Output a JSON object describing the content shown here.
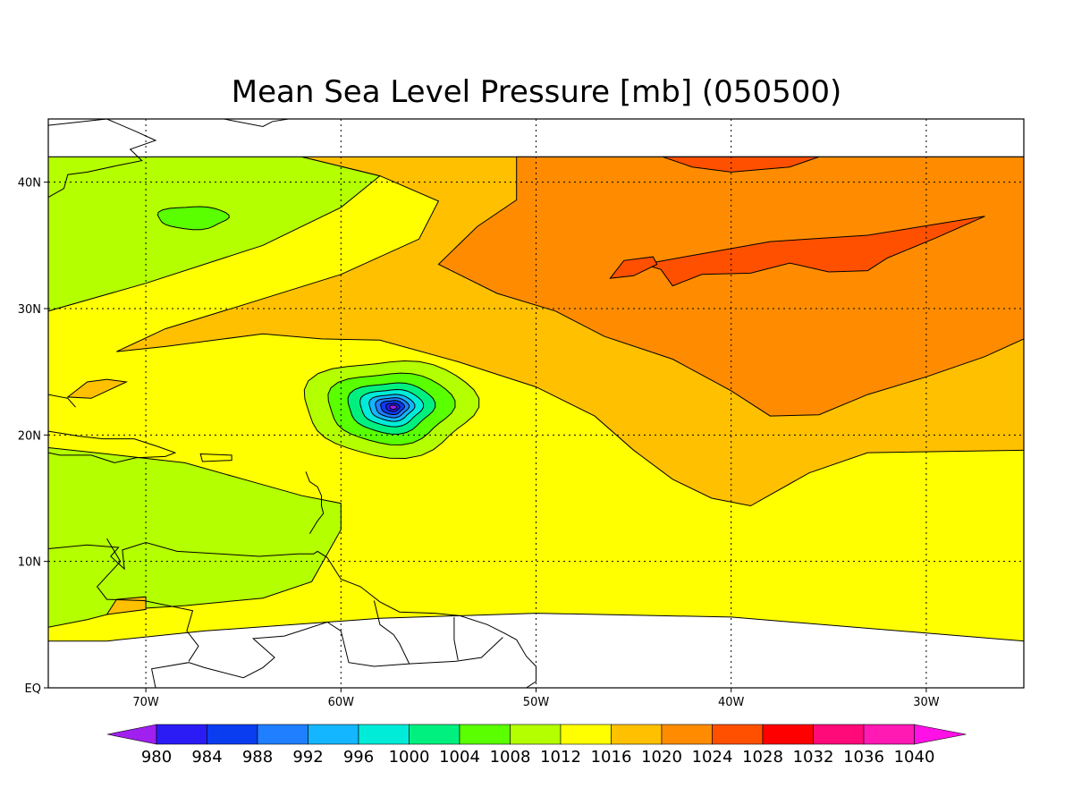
{
  "title": "Mean Sea Level Pressure [mb] (050500)",
  "map": {
    "lon_range": [
      -75,
      -25
    ],
    "lat_range": [
      0,
      45
    ],
    "x_ticks": [
      {
        "value": -70,
        "label": "70W"
      },
      {
        "value": -60,
        "label": "60W"
      },
      {
        "value": -50,
        "label": "50W"
      },
      {
        "value": -40,
        "label": "40W"
      },
      {
        "value": -30,
        "label": "30W"
      }
    ],
    "y_ticks": [
      {
        "value": 0,
        "label": "EQ"
      },
      {
        "value": 10,
        "label": "10N"
      },
      {
        "value": 20,
        "label": "20N"
      },
      {
        "value": 30,
        "label": "30N"
      },
      {
        "value": 40,
        "label": "40N"
      }
    ],
    "grid": true,
    "features": {
      "low_center": {
        "lon": -57.5,
        "lat": 22.2,
        "min_pressure_level": 980
      },
      "high_ridge_max_level": 1028
    }
  },
  "colorbar": {
    "levels": [
      "980",
      "984",
      "988",
      "992",
      "996",
      "1000",
      "1004",
      "1008",
      "1012",
      "1016",
      "1020",
      "1024",
      "1028",
      "1032",
      "1036",
      "1040"
    ],
    "colors": [
      "#a020f0",
      "#2b1cf6",
      "#0a3cf0",
      "#1f7fff",
      "#14b6ff",
      "#00ecd8",
      "#00f080",
      "#5aff00",
      "#b4ff00",
      "#ffff00",
      "#ffc000",
      "#ff8c00",
      "#ff5000",
      "#ff0000",
      "#ff0a78",
      "#ff1ab4",
      "#ff10e6"
    ]
  }
}
